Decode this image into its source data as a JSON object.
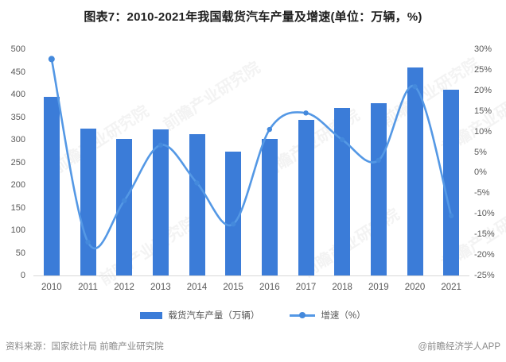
{
  "title": "图表7：2010-2021年我国载货汽车产量及增速(单位：万辆，%)",
  "chart_data": {
    "type": "bar",
    "subtype": "combo-bar-line",
    "categories": [
      "2010",
      "2011",
      "2012",
      "2013",
      "2014",
      "2015",
      "2016",
      "2017",
      "2018",
      "2019",
      "2020",
      "2021"
    ],
    "series": [
      {
        "name": "载货汽车产量（万辆）",
        "type": "bar",
        "axis": "left",
        "values": [
          394,
          325,
          302,
          322,
          313,
          273,
          302,
          344,
          370,
          380,
          460,
          411
        ]
      },
      {
        "name": "增速（%）",
        "type": "line",
        "axis": "right",
        "values": [
          27.6,
          -16.9,
          -6.8,
          6.7,
          -2.5,
          -12.5,
          10.5,
          14.5,
          8.0,
          3.0,
          20.9,
          -10.5
        ]
      }
    ],
    "title": "图表7：2010-2021年我国载货汽车产量及增速(单位：万辆，%)",
    "xlabel": "",
    "ylabel_left": "万辆",
    "ylabel_right": "%",
    "left_axis": {
      "min": 0,
      "max": 500,
      "ticks": [
        "500",
        "450",
        "400",
        "350",
        "300",
        "250",
        "200",
        "150",
        "100",
        "50",
        "0"
      ]
    },
    "right_axis": {
      "min": -25,
      "max": 30,
      "ticks": [
        "30%",
        "25%",
        "20%",
        "15%",
        "10%",
        "5%",
        "0%",
        "-5%",
        "-10%",
        "-15%",
        "-20%",
        "-25%"
      ]
    },
    "grid": false,
    "legend_position": "bottom"
  },
  "legend": {
    "bar_label": "载货汽车产量（万辆）",
    "line_label": "增速（%）"
  },
  "footer": {
    "source": "资料来源：国家统计局 前瞻产业研究院",
    "brand": "@前瞻经济学人APP"
  },
  "watermark": {
    "text": "前瞻产业研究院"
  },
  "colors": {
    "bar": "#3b7cd8",
    "line": "#5498e5",
    "marker": "#4489dc",
    "axis_text": "#595959",
    "title_text": "#1f1f1f",
    "footer_text": "#8a8a8a",
    "baseline": "#d8d8d8"
  }
}
